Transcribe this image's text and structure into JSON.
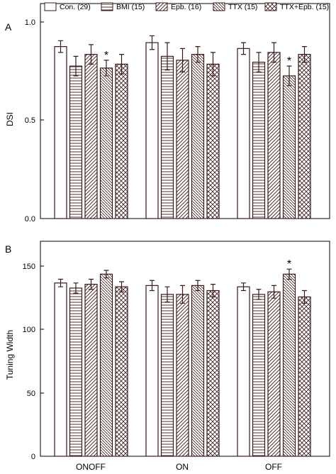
{
  "colors": {
    "bar_edge": "#3a1a1a",
    "hatch": "#3a1a1a",
    "axis": "#000000",
    "background": "#ffffff"
  },
  "legend": {
    "placement": "top",
    "entries": [
      {
        "label": "Con. (29)",
        "pattern": "none"
      },
      {
        "label": "BMI (15)",
        "pattern": "horizontal"
      },
      {
        "label": "Epb. (16)",
        "pattern": "diag-up"
      },
      {
        "label": "TTX (15)",
        "pattern": "diag-down"
      },
      {
        "label": "TTX+Epb. (15)",
        "pattern": "cross"
      }
    ]
  },
  "panels": {
    "a": {
      "letter": "A",
      "ylabel": "DSI",
      "ticks": [
        "0.0",
        "0.5",
        "1.0"
      ]
    },
    "b": {
      "letter": "B",
      "ylabel": "Tuning Width",
      "ticks": [
        "0",
        "50",
        "100",
        "150"
      ]
    }
  },
  "chart_data": [
    {
      "type": "bar",
      "panel": "A",
      "ylabel": "DSI",
      "xlabel": "",
      "ylim": [
        0,
        1.1
      ],
      "yticks": [
        0.0,
        0.5,
        1.0
      ],
      "grid": false,
      "categories": [
        "ONOFF",
        "ON",
        "OFF"
      ],
      "series": [
        {
          "name": "Con. (29)",
          "values": [
            0.88,
            0.9,
            0.87
          ],
          "errors": [
            0.03,
            0.035,
            0.03
          ]
        },
        {
          "name": "BMI (15)",
          "values": [
            0.78,
            0.83,
            0.8
          ],
          "errors": [
            0.05,
            0.07,
            0.05
          ]
        },
        {
          "name": "Epb. (16)",
          "values": [
            0.84,
            0.81,
            0.85
          ],
          "errors": [
            0.05,
            0.06,
            0.05
          ]
        },
        {
          "name": "TTX (15)",
          "values": [
            0.77,
            0.84,
            0.73
          ],
          "errors": [
            0.04,
            0.04,
            0.05
          ]
        },
        {
          "name": "TTX+Epb. (15)",
          "values": [
            0.79,
            0.79,
            0.84
          ],
          "errors": [
            0.05,
            0.06,
            0.04
          ]
        }
      ],
      "annotations": [
        {
          "text": "*",
          "category": "ONOFF",
          "series": "TTX (15)"
        },
        {
          "text": "*",
          "category": "OFF",
          "series": "TTX (15)"
        }
      ]
    },
    {
      "type": "bar",
      "panel": "B",
      "ylabel": "Tuning Width",
      "xlabel": "",
      "ylim": [
        0,
        170
      ],
      "yticks": [
        0,
        50,
        100,
        150
      ],
      "grid": false,
      "categories": [
        "ONOFF",
        "ON",
        "OFF"
      ],
      "series": [
        {
          "name": "Con. (29)",
          "values": [
            137,
            135,
            134
          ],
          "errors": [
            3,
            4,
            3
          ]
        },
        {
          "name": "BMI (15)",
          "values": [
            133,
            128,
            128
          ],
          "errors": [
            4,
            6,
            4
          ]
        },
        {
          "name": "Epb. (16)",
          "values": [
            136,
            128,
            130
          ],
          "errors": [
            4,
            7,
            5
          ]
        },
        {
          "name": "TTX (15)",
          "values": [
            144,
            135,
            144
          ],
          "errors": [
            3,
            4,
            4
          ]
        },
        {
          "name": "TTX+Epb. (15)",
          "values": [
            134,
            131,
            126
          ],
          "errors": [
            4,
            5,
            5
          ]
        }
      ],
      "annotations": [
        {
          "text": "*",
          "category": "OFF",
          "series": "TTX (15)"
        }
      ]
    }
  ]
}
